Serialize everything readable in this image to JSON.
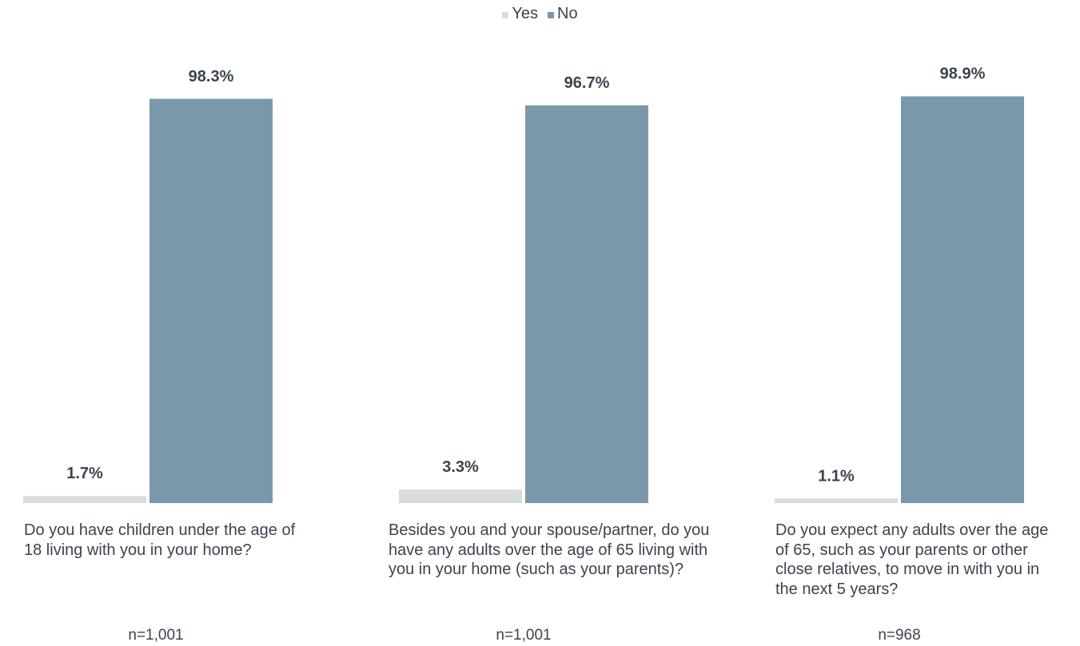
{
  "chart_data": {
    "type": "bar",
    "legend_position": "top-center",
    "grid": false,
    "series": [
      {
        "name": "Yes",
        "color": "#d9dcdc",
        "values": [
          1.7,
          3.3,
          1.1
        ],
        "labels": [
          "1.7%",
          "3.3%",
          "1.1%"
        ]
      },
      {
        "name": "No",
        "color": "#7b98ab",
        "values": [
          98.3,
          96.7,
          98.9
        ],
        "labels": [
          "98.3%",
          "96.7%",
          "98.9%"
        ]
      }
    ],
    "categories": [
      "Do you have children under the age of 18 living with you in your home?",
      "Besides you and your spouse/partner, do you have any adults over the age of 65 living with you in your home (such as your parents)?",
      "Do you expect any adults over the age of 65, such as your parents or other close relatives, to move in with you in the next 5 years?"
    ],
    "sample_sizes": [
      "n=1,001",
      "n=1,001",
      "n=968"
    ],
    "ylim": [
      0,
      100
    ]
  }
}
